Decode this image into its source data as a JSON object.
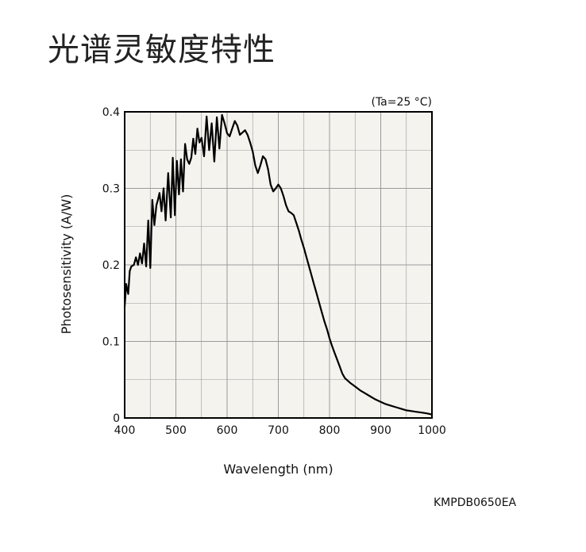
{
  "page": {
    "title": "光谱灵敏度特性",
    "figure_code": "KMPDB0650EA"
  },
  "chart_data": {
    "type": "line",
    "title": "",
    "condition": "(Ta=25 °C)",
    "xlabel": "Wavelength (nm)",
    "ylabel": "Photosensitivity (A/W)",
    "xlim": [
      400,
      1000
    ],
    "ylim": [
      0,
      0.4
    ],
    "xticks": [
      400,
      500,
      600,
      700,
      800,
      900,
      1000
    ],
    "yticks": [
      0,
      0.1,
      0.2,
      0.3,
      0.4
    ],
    "ytick_labels": [
      "0",
      "0.1",
      "0.2",
      "0.3",
      "0.4"
    ],
    "grid": true,
    "colors": {
      "plot_bg": "#f4f3ee",
      "line": "#000000",
      "grid": "#9a9a9a",
      "frame": "#000000"
    },
    "series": [
      {
        "x": [
          400,
          403,
          407,
          410,
          413,
          418,
          422,
          426,
          430,
          434,
          438,
          442,
          446,
          450,
          454,
          458,
          462,
          465,
          468,
          472,
          476,
          480,
          485,
          490,
          494,
          498,
          502,
          506,
          510,
          514,
          518,
          522,
          526,
          530,
          534,
          538,
          542,
          546,
          550,
          555,
          560,
          565,
          570,
          575,
          580,
          585,
          590,
          595,
          600,
          605,
          610,
          615,
          620,
          625,
          630,
          635,
          640,
          645,
          650,
          655,
          660,
          665,
          670,
          675,
          680,
          685,
          690,
          695,
          700,
          705,
          710,
          715,
          720,
          725,
          730,
          735,
          740,
          745,
          750,
          755,
          760,
          765,
          770,
          775,
          780,
          785,
          790,
          795,
          800,
          805,
          810,
          815,
          820,
          825,
          830,
          840,
          850,
          860,
          870,
          880,
          890,
          900,
          910,
          920,
          930,
          940,
          950,
          960,
          970,
          980,
          990,
          1000
        ],
        "values": [
          0.145,
          0.175,
          0.162,
          0.192,
          0.198,
          0.2,
          0.21,
          0.2,
          0.215,
          0.202,
          0.228,
          0.198,
          0.258,
          0.196,
          0.285,
          0.252,
          0.278,
          0.285,
          0.294,
          0.27,
          0.3,
          0.258,
          0.32,
          0.262,
          0.34,
          0.265,
          0.336,
          0.292,
          0.338,
          0.296,
          0.358,
          0.338,
          0.332,
          0.34,
          0.365,
          0.345,
          0.378,
          0.36,
          0.366,
          0.342,
          0.394,
          0.35,
          0.385,
          0.335,
          0.393,
          0.352,
          0.396,
          0.385,
          0.372,
          0.368,
          0.378,
          0.388,
          0.382,
          0.37,
          0.373,
          0.376,
          0.37,
          0.36,
          0.348,
          0.33,
          0.32,
          0.33,
          0.342,
          0.338,
          0.325,
          0.305,
          0.296,
          0.3,
          0.305,
          0.3,
          0.29,
          0.278,
          0.27,
          0.268,
          0.265,
          0.255,
          0.245,
          0.233,
          0.222,
          0.21,
          0.198,
          0.186,
          0.174,
          0.162,
          0.15,
          0.138,
          0.126,
          0.116,
          0.104,
          0.094,
          0.085,
          0.076,
          0.067,
          0.058,
          0.052,
          0.046,
          0.041,
          0.036,
          0.032,
          0.028,
          0.024,
          0.021,
          0.018,
          0.016,
          0.014,
          0.012,
          0.01,
          0.009,
          0.008,
          0.007,
          0.006,
          0.0045
        ]
      }
    ]
  }
}
